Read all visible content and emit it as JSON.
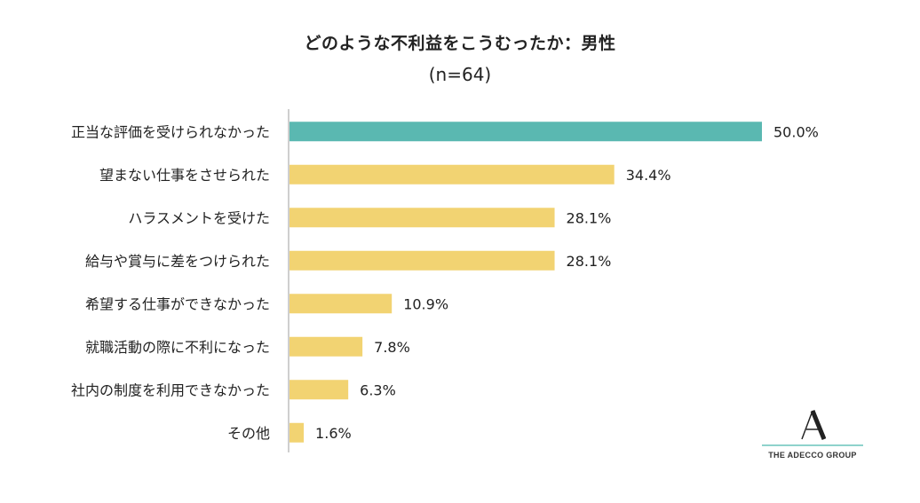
{
  "chart_data": {
    "type": "bar",
    "orientation": "horizontal",
    "title": "どのような不利益をこうむったか：男性",
    "subtitle": "(n=64)",
    "categories": [
      "正当な評価を受けられなかった",
      "望まない仕事をさせられた",
      "ハラスメントを受けた",
      "給与や賞与に差をつけられた",
      "希望する仕事ができなかった",
      "就職活動の際に不利になった",
      "社内の制度を利用できなかった",
      "その他"
    ],
    "values": [
      50.0,
      34.4,
      28.1,
      28.1,
      10.9,
      7.8,
      6.3,
      1.6
    ],
    "value_labels": [
      "50.0%",
      "34.4%",
      "28.1%",
      "28.1%",
      "10.9%",
      "7.8%",
      "6.3%",
      "1.6%"
    ],
    "highlight_index": 0,
    "xlim": [
      0,
      50
    ],
    "xlabel": "",
    "ylabel": "",
    "grid": false
  },
  "colors": {
    "highlight": "#5ab8b1",
    "bar": "#f2d372",
    "axis": "#bfbfbf"
  },
  "logo": {
    "text": "THE ADECCO GROUP",
    "mark_icon": "adecco-a-icon"
  }
}
